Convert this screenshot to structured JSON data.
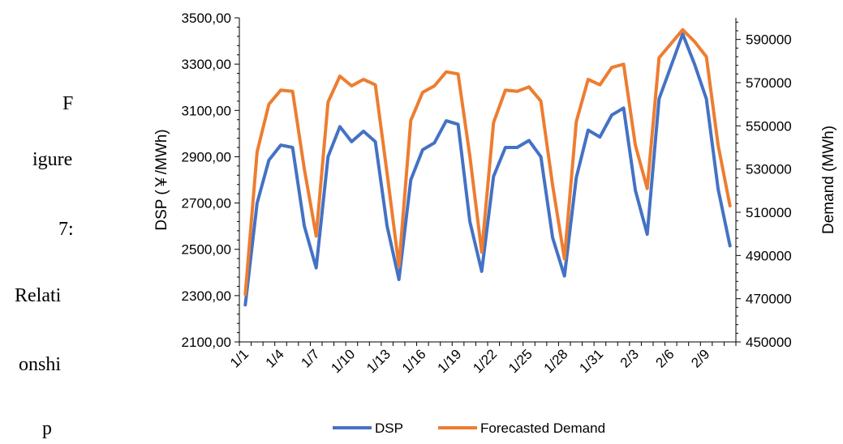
{
  "side_text": [
    "F",
    "igure",
    "7:",
    "Relati",
    "onshi",
    "p"
  ],
  "chart_data": {
    "type": "line",
    "x": [
      "1/1",
      "1/2",
      "1/3",
      "1/4",
      "1/5",
      "1/6",
      "1/7",
      "1/8",
      "1/9",
      "1/10",
      "1/11",
      "1/12",
      "1/13",
      "1/14",
      "1/15",
      "1/16",
      "1/17",
      "1/18",
      "1/19",
      "1/20",
      "1/21",
      "1/22",
      "1/23",
      "1/24",
      "1/25",
      "1/26",
      "1/27",
      "1/28",
      "1/29",
      "1/30",
      "1/31",
      "2/1",
      "2/2",
      "2/3",
      "2/4",
      "2/5",
      "2/6",
      "2/7",
      "2/8",
      "2/9",
      "2/10",
      "2/11"
    ],
    "x_tick_labels": [
      "1/1",
      "1/4",
      "1/7",
      "1/10",
      "1/13",
      "1/16",
      "1/19",
      "1/22",
      "1/25",
      "1/28",
      "1/31",
      "2/3",
      "2/6",
      "2/9"
    ],
    "ylabel": "DSP (￥/MWh)",
    "y2label": "Demand (MWh)",
    "ylim": [
      2100,
      3500
    ],
    "y2lim": [
      450000,
      600000
    ],
    "y_ticks": [
      "2100,00",
      "2300,00",
      "2500,00",
      "2700,00",
      "2900,00",
      "3100,00",
      "3300,00",
      "3500,00"
    ],
    "y2_ticks": [
      "450000",
      "470000",
      "490000",
      "510000",
      "530000",
      "550000",
      "570000",
      "590000"
    ],
    "legend_position": "bottom",
    "grid": false,
    "series": [
      {
        "name": "DSP",
        "axis": "left",
        "color": "#4472C4",
        "values": [
          2260,
          2700,
          2885,
          2950,
          2940,
          2600,
          2420,
          2900,
          3030,
          2965,
          3010,
          2965,
          2600,
          2370,
          2800,
          2930,
          2960,
          3055,
          3040,
          2620,
          2405,
          2815,
          2940,
          2940,
          2970,
          2900,
          2550,
          2385,
          2810,
          3015,
          2985,
          3080,
          3110,
          2755,
          2565,
          3150,
          3290,
          3430,
          3300,
          3150,
          2760,
          2515
        ]
      },
      {
        "name": "Forecasted Demand",
        "axis": "right",
        "color": "#ED7D31",
        "values": [
          472000,
          538000,
          560000,
          566500,
          566000,
          530000,
          499000,
          561000,
          573000,
          568500,
          571500,
          569000,
          528000,
          485000,
          552500,
          565500,
          568500,
          575000,
          574000,
          536000,
          491500,
          551500,
          566500,
          566000,
          568000,
          561500,
          522500,
          488500,
          552000,
          571500,
          569000,
          577000,
          578500,
          541000,
          521000,
          581500,
          588000,
          594500,
          589000,
          582000,
          541000,
          513000
        ]
      }
    ]
  }
}
